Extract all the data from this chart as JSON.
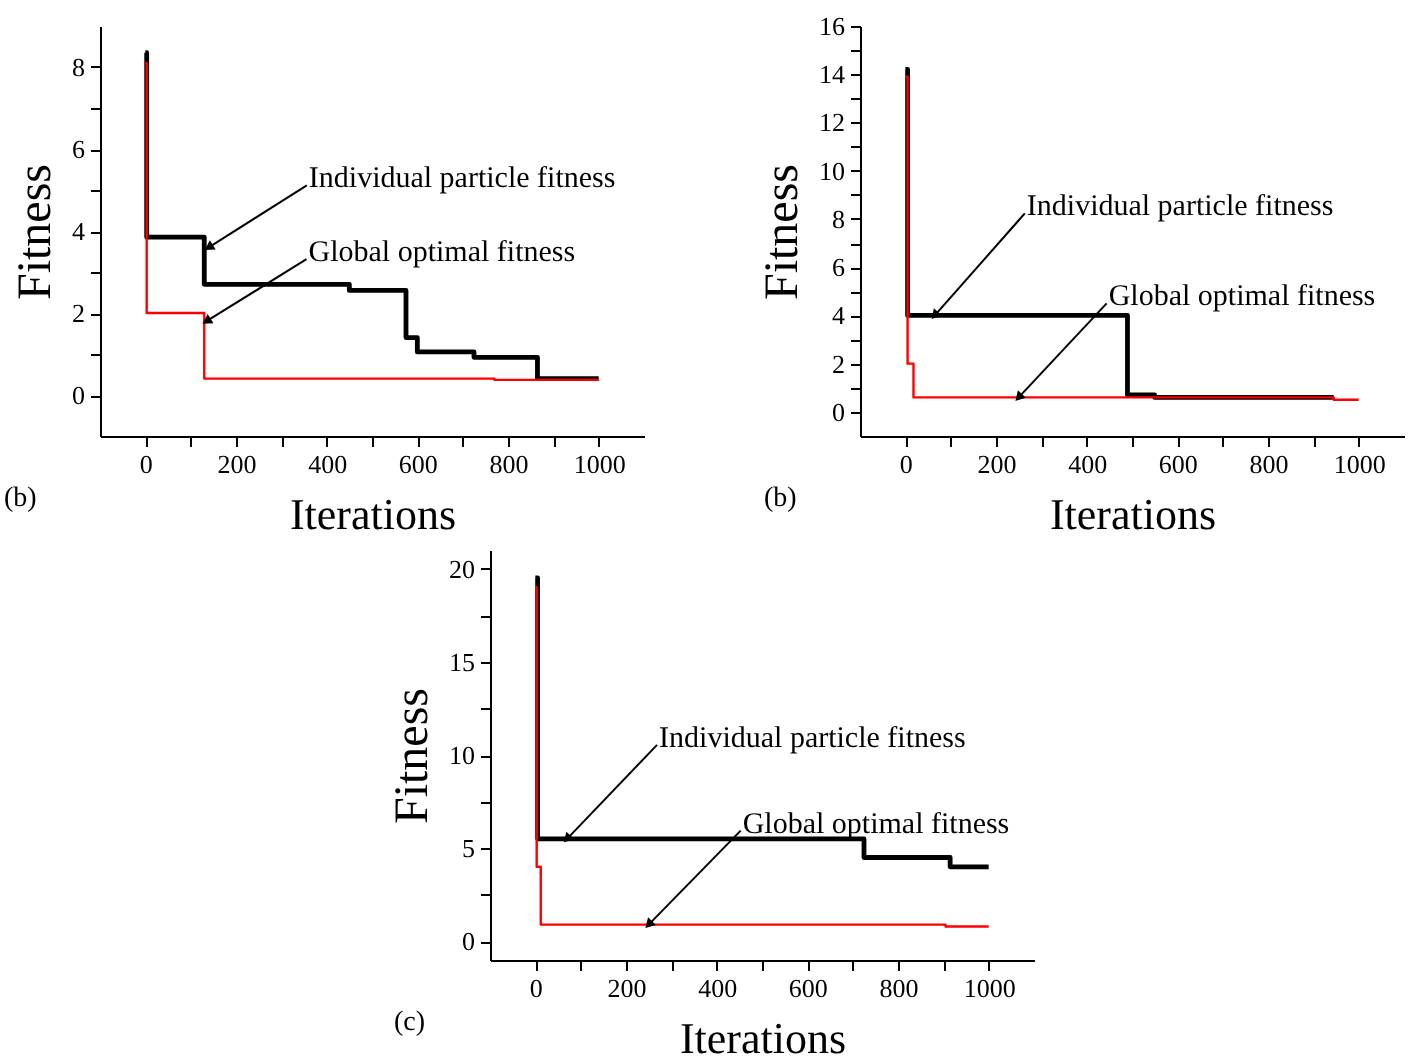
{
  "chart_data": [
    {
      "type": "step",
      "xlabel": "Iterations",
      "ylabel": "Fitness",
      "xlim": [
        -100,
        1100
      ],
      "ylim": [
        -1,
        9
      ],
      "xticks": [
        0,
        {
          "value": 100,
          "label": null
        },
        200,
        {
          "value": 300,
          "label": null
        },
        400,
        {
          "value": 500,
          "label": null
        },
        600,
        {
          "value": 700,
          "label": null
        },
        800,
        {
          "value": 900,
          "label": null
        },
        1000
      ],
      "yticks": [
        0,
        {
          "value": 1,
          "label": null
        },
        2,
        {
          "value": 3,
          "label": null
        },
        4,
        {
          "value": 5,
          "label": null
        },
        6,
        {
          "value": 7,
          "label": null
        },
        8
      ],
      "series": [
        {
          "color": "#000000",
          "x": [
            0,
            3,
            130,
            450,
            575,
            600,
            725,
            865,
            1000
          ],
          "values": [
            8.35,
            3.85,
            2.7,
            2.55,
            1.4,
            1.05,
            0.92,
            0.4,
            0.4
          ]
        },
        {
          "color": "#ff0000",
          "x": [
            0,
            3,
            130,
            770,
            1000
          ],
          "values": [
            8.1,
            2.0,
            0.4,
            0.37,
            0.37
          ]
        }
      ],
      "annotations": [
        {
          "text": "Individual particle fitness",
          "x": 140,
          "y": 3.6
        },
        {
          "text": "Global optimal fitness",
          "x": 135,
          "y": 1.8
        },
        "(b)"
      ],
      "grid": false,
      "marker": "none"
    },
    {
      "type": "step",
      "xlabel": "Iterations",
      "ylabel": "Fitness",
      "xlim": [
        -100,
        1100
      ],
      "ylim": [
        -1,
        16
      ],
      "xticks": [
        0,
        {
          "value": 100,
          "label": null
        },
        200,
        {
          "value": 300,
          "label": null
        },
        400,
        {
          "value": 500,
          "label": null
        },
        600,
        {
          "value": 700,
          "label": null
        },
        800,
        {
          "value": 900,
          "label": null
        },
        1000
      ],
      "yticks": [
        0,
        {
          "value": 1,
          "label": null
        },
        2,
        {
          "value": 3,
          "label": null
        },
        4,
        {
          "value": 5,
          "label": null
        },
        6,
        {
          "value": 7,
          "label": null
        },
        8,
        {
          "value": 9,
          "label": null
        },
        10,
        {
          "value": 11,
          "label": null
        },
        12,
        {
          "value": 13,
          "label": null
        },
        14,
        {
          "value": 15,
          "label": null
        },
        16
      ],
      "series": [
        {
          "color": "#000000",
          "x": [
            0,
            5,
            490,
            550,
            945
          ],
          "values": [
            14.2,
            4.0,
            0.7,
            0.6,
            0.6
          ]
        },
        {
          "color": "#ff0000",
          "x": [
            0,
            5,
            18,
            945,
            1000
          ],
          "values": [
            13.9,
            2.0,
            0.6,
            0.5,
            0.5
          ]
        }
      ],
      "annotations": [
        {
          "text": "Individual particle fitness",
          "x": 65,
          "y": 4.0
        },
        {
          "text": "Global optimal fitness",
          "x": 250,
          "y": 0.6
        },
        "(b)"
      ],
      "grid": false,
      "marker": "none"
    },
    {
      "type": "step",
      "xlabel": "Iterations",
      "ylabel": "Fitness",
      "xlim": [
        -100,
        1100
      ],
      "ylim": [
        -1,
        21
      ],
      "xticks": [
        0,
        {
          "value": 100,
          "label": null
        },
        200,
        {
          "value": 300,
          "label": null
        },
        400,
        {
          "value": 500,
          "label": null
        },
        600,
        {
          "value": 700,
          "label": null
        },
        800,
        {
          "value": 900,
          "label": null
        },
        1000
      ],
      "yticks": [
        0,
        {
          "value": 2.5,
          "label": null
        },
        5,
        {
          "value": 7.5,
          "label": null
        },
        10,
        {
          "value": 12.5,
          "label": null
        },
        15,
        {
          "value": 17.5,
          "label": null
        },
        20
      ],
      "series": [
        {
          "color": "#000000",
          "x": [
            0,
            5,
            725,
            915,
            1000
          ],
          "values": [
            19.5,
            5.5,
            4.5,
            4.0,
            4.0
          ]
        },
        {
          "color": "#ff0000",
          "x": [
            0,
            3,
            12,
            905,
            1000
          ],
          "values": [
            19.0,
            4.0,
            0.9,
            0.8,
            0.8
          ]
        }
      ],
      "annotations": [
        {
          "text": "Individual particle fitness",
          "x": 70,
          "y": 5.5
        },
        {
          "text": "Global optimal fitness",
          "x": 250,
          "y": 0.9
        },
        "(c)"
      ],
      "grid": false,
      "marker": "none"
    }
  ]
}
